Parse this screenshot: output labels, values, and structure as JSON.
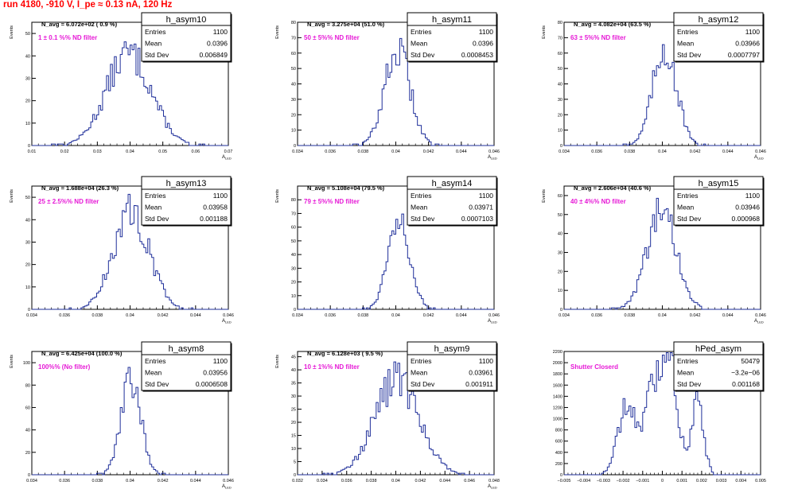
{
  "page": {
    "title": "run 4180,  -910 V, I_pe ≈ 0.13 nA, 120 Hz"
  },
  "style": {
    "line_color": "#1f2f9a",
    "note_color": "#e619d6",
    "title_color": "#ff0000"
  },
  "chart_data": [
    {
      "type": "histogram",
      "name": "h_asym10",
      "ylabel": "Events",
      "xlabel": "A_LED",
      "avg_label": "N_avg = 6.072e+02 ( 0.9 %)",
      "note": "1 ± 0.1 %% ND filter",
      "stats": [
        [
          "Entries",
          "1100"
        ],
        [
          "Mean",
          "0.0396"
        ],
        [
          "Std Dev",
          "0.006849"
        ]
      ],
      "xlim": [
        0.01,
        0.07
      ],
      "ylim": [
        0,
        55
      ],
      "xticks": [
        "0.01",
        "0.02",
        "0.03",
        "0.04",
        "0.05",
        "0.06",
        "0.07"
      ],
      "yticks": [
        "0",
        "10",
        "20",
        "30",
        "40",
        "50"
      ],
      "mean": 0.0396,
      "sd": 0.006849,
      "peak": 50
    },
    {
      "type": "histogram",
      "name": "h_asym11",
      "ylabel": "Events",
      "xlabel": "A_LED",
      "avg_label": "N_avg = 3.275e+04 (51.0 %)",
      "note": "50 ± 5%% ND filter",
      "stats": [
        [
          "Entries",
          "1100"
        ],
        [
          "Mean",
          "0.0396"
        ],
        [
          "Std Dev",
          "0.0008453"
        ]
      ],
      "xlim": [
        0.033,
        0.046
      ],
      "ylim": [
        0,
        80
      ],
      "xticks": [
        "0.034",
        "0.036",
        "0.038",
        "0.04",
        "0.042",
        "0.044",
        "0.046"
      ],
      "yticks": [
        "0",
        "10",
        "20",
        "30",
        "40",
        "50",
        "60",
        "70",
        "80"
      ],
      "mean": 0.0396,
      "sd": 0.0008453,
      "peak": 75
    },
    {
      "type": "histogram",
      "name": "h_asym12",
      "ylabel": "Events",
      "xlabel": "A_LED",
      "avg_label": "N_avg = 4.082e+04 (63.5 %)",
      "note": "63 ± 5%% ND filter",
      "stats": [
        [
          "Entries",
          "1100"
        ],
        [
          "Mean",
          "0.03966"
        ],
        [
          "Std Dev",
          "0.0007797"
        ]
      ],
      "xlim": [
        0.033,
        0.046
      ],
      "ylim": [
        0,
        80
      ],
      "xticks": [
        "0.034",
        "0.036",
        "0.038",
        "0.04",
        "0.042",
        "0.044",
        "0.046"
      ],
      "yticks": [
        "0",
        "10",
        "20",
        "30",
        "40",
        "50",
        "60",
        "70",
        "80"
      ],
      "mean": 0.03966,
      "sd": 0.0007797,
      "peak": 78
    },
    {
      "type": "histogram",
      "name": "h_asym13",
      "ylabel": "Events",
      "xlabel": "A_LED",
      "avg_label": "N_avg = 1.688e+04 (26.3 %)",
      "note": "25 ± 2.5%% ND filter",
      "stats": [
        [
          "Entries",
          "1100"
        ],
        [
          "Mean",
          "0.03958"
        ],
        [
          "Std Dev",
          "0.001188"
        ]
      ],
      "xlim": [
        0.033,
        0.046
      ],
      "ylim": [
        0,
        55
      ],
      "xticks": [
        "0.034",
        "0.036",
        "0.038",
        "0.04",
        "0.042",
        "0.044",
        "0.046"
      ],
      "yticks": [
        "0",
        "10",
        "20",
        "30",
        "40",
        "50"
      ],
      "mean": 0.03958,
      "sd": 0.001188,
      "peak": 53
    },
    {
      "type": "histogram",
      "name": "h_asym14",
      "ylabel": "Events",
      "xlabel": "A_LED",
      "avg_label": "N_avg = 5.108e+04 (79.5 %)",
      "note": "79 ± 5%% ND filter",
      "stats": [
        [
          "Entries",
          "1100"
        ],
        [
          "Mean",
          "0.03971"
        ],
        [
          "Std Dev",
          "0.0007103"
        ]
      ],
      "xlim": [
        0.033,
        0.046
      ],
      "ylim": [
        0,
        90
      ],
      "xticks": [
        "0.034",
        "0.036",
        "0.038",
        "0.04",
        "0.042",
        "0.044",
        "0.046"
      ],
      "yticks": [
        "0",
        "10",
        "20",
        "30",
        "40",
        "50",
        "60",
        "70",
        "80"
      ],
      "mean": 0.03971,
      "sd": 0.0007103,
      "peak": 85
    },
    {
      "type": "histogram",
      "name": "h_asym15",
      "ylabel": "Events",
      "xlabel": "A_LED",
      "avg_label": "N_avg = 2.606e+04 (40.6 %)",
      "note": "40 ± 4%% ND filter",
      "stats": [
        [
          "Entries",
          "1100"
        ],
        [
          "Mean",
          "0.03946"
        ],
        [
          "Std Dev",
          "0.000968"
        ]
      ],
      "xlim": [
        0.033,
        0.046
      ],
      "ylim": [
        0,
        65
      ],
      "xticks": [
        "0.034",
        "0.036",
        "0.038",
        "0.04",
        "0.042",
        "0.044",
        "0.046"
      ],
      "yticks": [
        "0",
        "10",
        "20",
        "30",
        "40",
        "50",
        "60"
      ],
      "mean": 0.03946,
      "sd": 0.000968,
      "peak": 63
    },
    {
      "type": "histogram",
      "name": "h_asym8",
      "ylabel": "Events",
      "xlabel": "A_LED",
      "avg_label": "N_avg = 6.425e+04 (100.0 %)",
      "note": "100%% (No filter)",
      "stats": [
        [
          "Entries",
          "1100"
        ],
        [
          "Mean",
          "0.03956"
        ],
        [
          "Std Dev",
          "0.0006508"
        ]
      ],
      "xlim": [
        0.033,
        0.046
      ],
      "ylim": [
        0,
        110
      ],
      "xticks": [
        "0.034",
        "0.036",
        "0.038",
        "0.04",
        "0.042",
        "0.044",
        "0.046"
      ],
      "yticks": [
        "0",
        "20",
        "40",
        "60",
        "80",
        "100"
      ],
      "mean": 0.03956,
      "sd": 0.0006508,
      "peak": 105
    },
    {
      "type": "histogram",
      "name": "h_asym9",
      "ylabel": "Events",
      "xlabel": "A_LED",
      "avg_label": "N_avg = 6.128e+03 ( 9.5 %)",
      "note": "10 ± 1%% ND filter",
      "stats": [
        [
          "Entries",
          "1100"
        ],
        [
          "Mean",
          "0.03961"
        ],
        [
          "Std Dev",
          "0.001911"
        ]
      ],
      "xlim": [
        0.031,
        0.048
      ],
      "ylim": [
        0,
        47
      ],
      "xticks": [
        "0.032",
        "0.034",
        "0.036",
        "0.038",
        "0.04",
        "0.042",
        "0.044",
        "0.046",
        "0.048"
      ],
      "yticks": [
        "0",
        "5",
        "10",
        "15",
        "20",
        "25",
        "30",
        "35",
        "40",
        "45"
      ],
      "mean": 0.03961,
      "sd": 0.001911,
      "peak": 44
    },
    {
      "type": "histogram",
      "name": "hPed_asym",
      "ylabel": "",
      "xlabel": "",
      "avg_label": "",
      "note": "Shutter Closerd",
      "stats": [
        [
          "Entries",
          "50479"
        ],
        [
          "Mean",
          "−3.2e−06"
        ],
        [
          "Std Dev",
          "0.001168"
        ]
      ],
      "xlim": [
        -0.005,
        0.005
      ],
      "ylim": [
        0,
        2200
      ],
      "xticks": [
        "−0.005",
        "−0.004",
        "−0.003",
        "−0.002",
        "−0.001",
        "0",
        "0.001",
        "0.002",
        "0.003",
        "0.004",
        "0.005"
      ],
      "yticks": [
        "0",
        "200",
        "400",
        "600",
        "800",
        "1000",
        "1200",
        "1400",
        "1600",
        "1800",
        "2000",
        "2200"
      ],
      "peaks": [
        [
          -0.0018,
          1250,
          0.00045
        ],
        [
          -0.0005,
          1450,
          0.0004
        ],
        [
          0.0004,
          1950,
          0.0004
        ],
        [
          0.0018,
          1300,
          0.0003
        ]
      ]
    }
  ]
}
